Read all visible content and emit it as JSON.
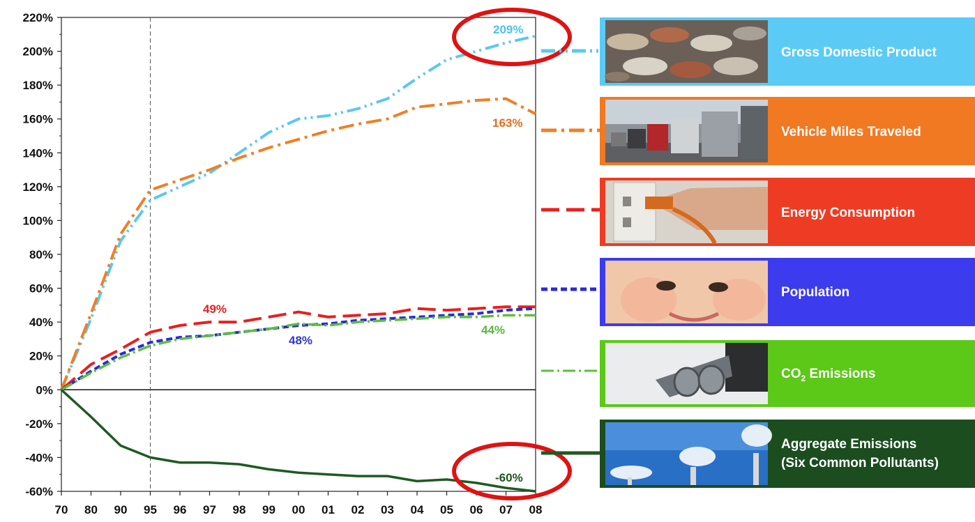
{
  "chart_data": {
    "type": "line",
    "x": [
      "70",
      "80",
      "90",
      "95",
      "96",
      "97",
      "98",
      "99",
      "00",
      "01",
      "02",
      "03",
      "04",
      "05",
      "06",
      "07",
      "08"
    ],
    "yticks": [
      "220%",
      "200%",
      "180%",
      "160%",
      "140%",
      "120%",
      "100%",
      "80%",
      "60%",
      "40%",
      "20%",
      "0%",
      "-20%",
      "-40%",
      "-60%"
    ],
    "ylim": [
      -60,
      220
    ],
    "grid": false,
    "reference_line_at": "95",
    "series": [
      {
        "name": "Gross Domestic Product",
        "color": "#5bc8f0",
        "values": [
          0,
          42,
          88,
          112,
          120,
          128,
          140,
          152,
          160,
          162,
          166,
          172,
          184,
          195,
          200,
          205,
          209
        ]
      },
      {
        "name": "Vehicle Miles Traveled",
        "color": "#f07f24",
        "values": [
          0,
          45,
          92,
          118,
          124,
          130,
          137,
          143,
          148,
          153,
          157,
          160,
          167,
          169,
          171,
          172,
          163
        ]
      },
      {
        "name": "Energy Consumption",
        "color": "#e8201f",
        "values": [
          0,
          15,
          24,
          34,
          38,
          40,
          40,
          43,
          46,
          43,
          44,
          45,
          48,
          47,
          48,
          49,
          49
        ]
      },
      {
        "name": "Population",
        "color": "#2a2ad8",
        "values": [
          0,
          11,
          21,
          28,
          31,
          32,
          34,
          36,
          38,
          39,
          41,
          42,
          43,
          44,
          45,
          47,
          48
        ]
      },
      {
        "name": "CO₂ Emissions",
        "color": "#5cc03a",
        "values": [
          0,
          10,
          19,
          26,
          30,
          32,
          34,
          36,
          39,
          38,
          40,
          41,
          42,
          43,
          43,
          44,
          44
        ]
      },
      {
        "name": "Aggregate Emissions (Six Common Pollutants)",
        "color": "#1f5a23",
        "values": [
          0,
          -16,
          -33,
          -40,
          -43,
          -43,
          -44,
          -47,
          -49,
          -50,
          -51,
          -51,
          -54,
          -53,
          -55,
          -58,
          -60
        ]
      }
    ],
    "annotations": [
      {
        "text": "209%",
        "color": "#4cc2ee"
      },
      {
        "text": "163%",
        "color": "#e46c1c"
      },
      {
        "text": "49%",
        "color": "#e02020"
      },
      {
        "text": "48%",
        "color": "#3434cf"
      },
      {
        "text": "44%",
        "color": "#56b93a"
      },
      {
        "text": "-60%",
        "color": "#1e5522"
      }
    ]
  },
  "legend": {
    "items": [
      {
        "label": "Gross Domestic Product",
        "color": "#5bcbf5",
        "image": "coins-photo"
      },
      {
        "label": "Vehicle Miles Traveled",
        "color": "#f07922",
        "image": "traffic-photo"
      },
      {
        "label": "Energy Consumption",
        "color": "#ee3c24",
        "image": "power-plug-photo"
      },
      {
        "label": "Population",
        "color": "#3c3cee",
        "image": "baby-photo"
      },
      {
        "label": "CO",
        "label_sub": "2",
        "label_tail": " Emissions",
        "color": "#5cc818",
        "image": "exhaust-pipe-photo"
      },
      {
        "label": "Aggregate Emissions",
        "label_line2": "(Six Common Pollutants)",
        "color": "#1b4d1f",
        "image": "smokestacks-photo"
      }
    ]
  },
  "highlights": [
    "red-circle-top",
    "red-circle-bottom"
  ]
}
